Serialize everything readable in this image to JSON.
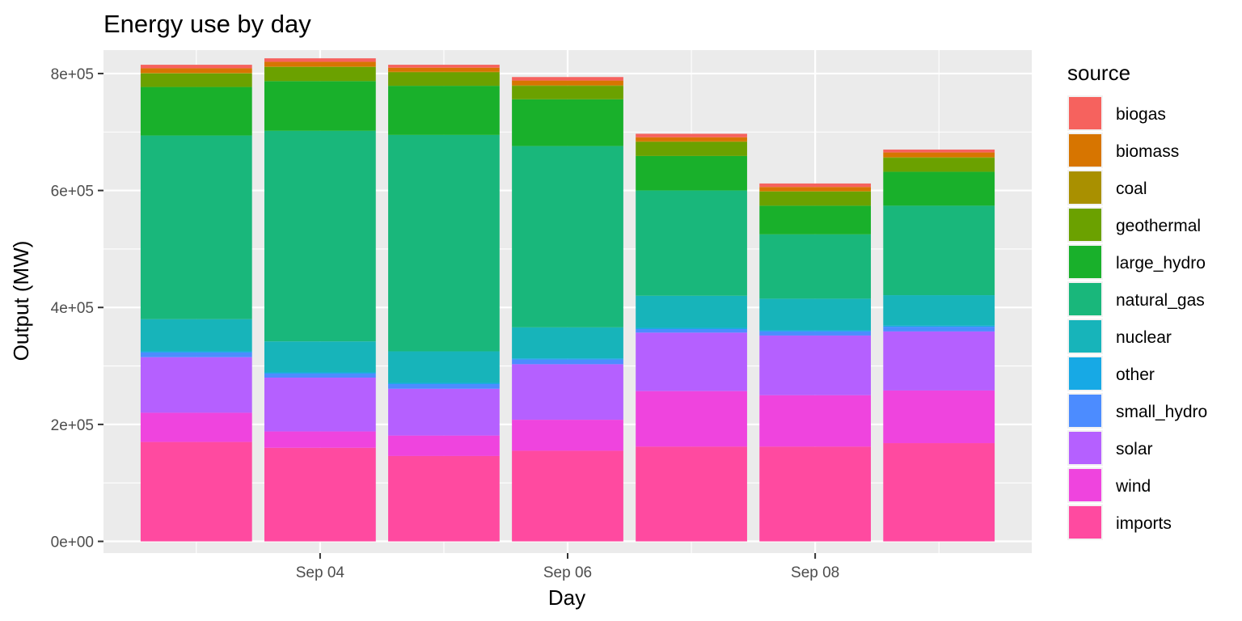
{
  "chart_data": {
    "type": "bar",
    "stacked": true,
    "title": "Energy use by day",
    "xlabel": "Day",
    "ylabel": "Output (MW)",
    "ylim": [
      -20000,
      840000
    ],
    "y_ticks": [
      0,
      200000,
      400000,
      600000,
      800000
    ],
    "y_tick_labels": [
      "0e+00",
      "2e+05",
      "4e+05",
      "6e+05",
      "8e+05"
    ],
    "x_ticks": [
      "2023-09-04",
      "2023-09-06",
      "2023-09-08"
    ],
    "x_tick_labels": [
      "Sep 04",
      "Sep 06",
      "Sep 08"
    ],
    "categories": [
      "2023-09-03",
      "2023-09-04",
      "2023-09-05",
      "2023-09-06",
      "2023-09-07",
      "2023-09-08",
      "2023-09-09"
    ],
    "grid": true,
    "legend": {
      "title": "source",
      "position": "right"
    },
    "series": [
      {
        "name": "imports",
        "color": "#FF4AA0",
        "values": [
          170000,
          160000,
          146000,
          155000,
          162000,
          162000,
          168000
        ]
      },
      {
        "name": "wind",
        "color": "#EF44DE",
        "values": [
          50000,
          28000,
          35000,
          53000,
          95000,
          88000,
          90000
        ]
      },
      {
        "name": "solar",
        "color": "#B560FF",
        "values": [
          95000,
          92000,
          80000,
          95000,
          100000,
          102000,
          101000
        ]
      },
      {
        "name": "small_hydro",
        "color": "#4C8CFF",
        "values": [
          8000,
          7000,
          8000,
          8000,
          6000,
          7000,
          8000
        ]
      },
      {
        "name": "other",
        "color": "#17A9E5",
        "values": [
          2000,
          2000,
          2000,
          2000,
          2000,
          2000,
          2000
        ]
      },
      {
        "name": "nuclear",
        "color": "#17B4BA",
        "values": [
          55000,
          53000,
          54000,
          53000,
          55000,
          54000,
          52000
        ]
      },
      {
        "name": "natural_gas",
        "color": "#19B77B",
        "values": [
          314000,
          360000,
          370000,
          310000,
          180000,
          110000,
          153000
        ]
      },
      {
        "name": "large_hydro",
        "color": "#19B02B",
        "values": [
          83000,
          85000,
          84000,
          80000,
          59000,
          49000,
          58000
        ]
      },
      {
        "name": "geothermal",
        "color": "#6BA100",
        "values": [
          23000,
          24000,
          23000,
          23000,
          24000,
          24000,
          24000
        ]
      },
      {
        "name": "coal",
        "color": "#A99000",
        "values": [
          1000,
          1000,
          1000,
          1000,
          1000,
          1000,
          1000
        ]
      },
      {
        "name": "biomass",
        "color": "#D77500",
        "values": [
          8000,
          8000,
          7000,
          8000,
          7000,
          7000,
          8000
        ]
      },
      {
        "name": "biogas",
        "color": "#F6625E",
        "values": [
          6000,
          6000,
          5000,
          6000,
          6000,
          6000,
          5000
        ]
      }
    ]
  }
}
